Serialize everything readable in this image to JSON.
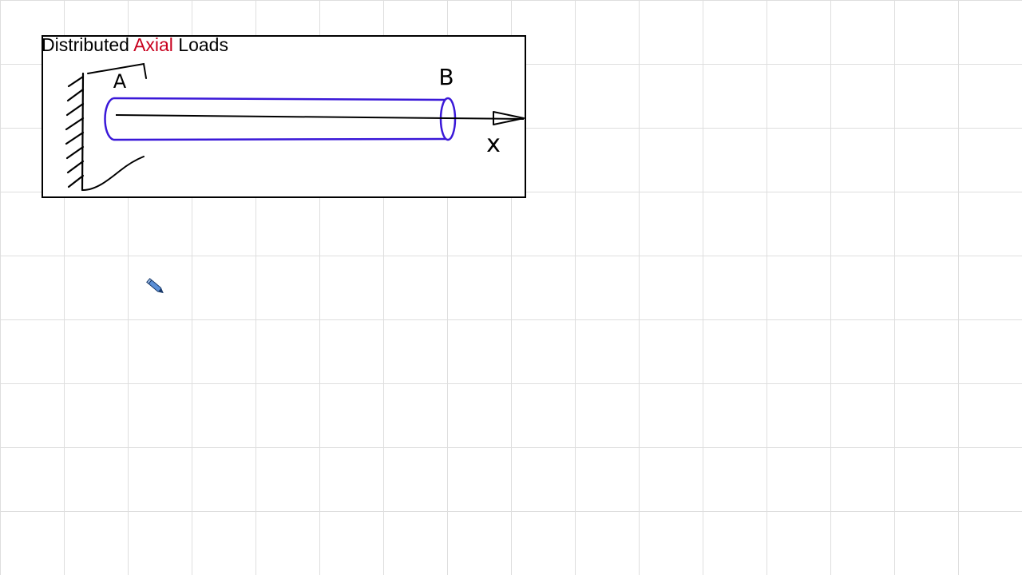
{
  "title": {
    "part1": "Distributed ",
    "part2": "Axial",
    "part3": " Loads"
  },
  "labels": {
    "end_a": "A",
    "end_b": "B",
    "axis": "x"
  },
  "colors": {
    "accent_red": "#c8001e",
    "bar_blue": "#3a18d8",
    "ink": "#000000"
  },
  "icons": {
    "cursor": "pen-cursor-icon"
  }
}
